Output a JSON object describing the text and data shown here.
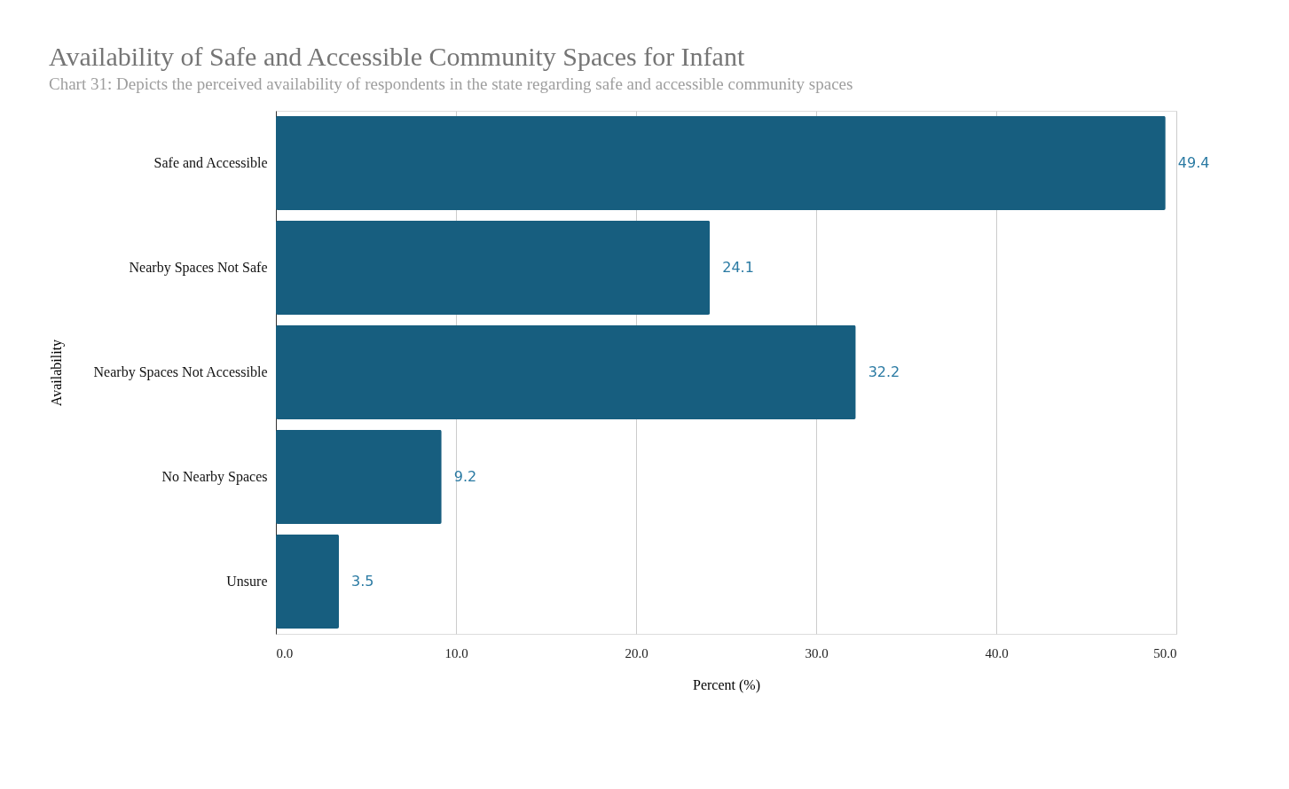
{
  "chart_data": {
    "type": "bar",
    "orientation": "horizontal",
    "title": "Availability of Safe and Accessible Community Spaces for Infant",
    "subtitle": "Chart 31: Depicts the perceived availability of respondents in the state regarding safe and accessible community spaces",
    "xlabel": "Percent (%)",
    "ylabel": "Availability",
    "categories": [
      "Safe and Accessible",
      "Nearby Spaces Not Safe",
      "Nearby Spaces Not Accessible",
      "No Nearby Spaces",
      "Unsure"
    ],
    "values": [
      49.4,
      24.1,
      32.2,
      9.2,
      3.5
    ],
    "color": "#175e7f",
    "xlim": [
      0,
      50
    ],
    "xticks": [
      {
        "value": 0,
        "label": "0.0"
      },
      {
        "value": 10,
        "label": "10.0"
      },
      {
        "value": 20,
        "label": "20.0"
      },
      {
        "value": 30,
        "label": "30.0"
      },
      {
        "value": 40,
        "label": "40.0"
      },
      {
        "value": 50,
        "label": "50.0"
      }
    ],
    "grid": "x",
    "data_labels": true
  }
}
